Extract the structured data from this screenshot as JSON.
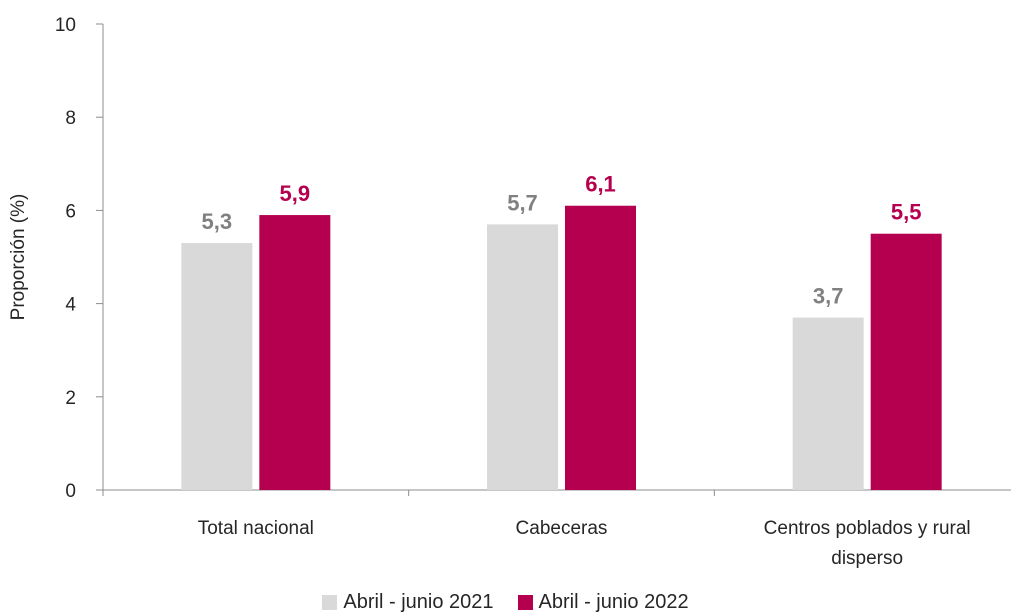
{
  "chart_data": {
    "type": "bar",
    "ylabel": "Proporción (%)",
    "ylim": [
      0,
      10
    ],
    "yticks": [
      "0",
      "2",
      "4",
      "6",
      "8",
      "10"
    ],
    "categories": [
      "Total nacional",
      "Cabeceras",
      "Centros poblados y rural disperso"
    ],
    "category_lines": [
      [
        "Total nacional"
      ],
      [
        "Cabeceras"
      ],
      [
        "Centros poblados y rural",
        "disperso"
      ]
    ],
    "series": [
      {
        "name": "Abril - junio 2021",
        "color": "#d9d9d9",
        "label_color": "#808080",
        "values": [
          5.3,
          5.7,
          3.7
        ],
        "labels": [
          "5,3",
          "5,7",
          "3,7"
        ]
      },
      {
        "name": "Abril - junio 2022",
        "color": "#b5004f",
        "label_color": "#b5004f",
        "values": [
          5.9,
          6.1,
          5.5
        ],
        "labels": [
          "5,9",
          "6,1",
          "5,5"
        ]
      }
    ],
    "grid": false,
    "legend_position": "bottom"
  }
}
